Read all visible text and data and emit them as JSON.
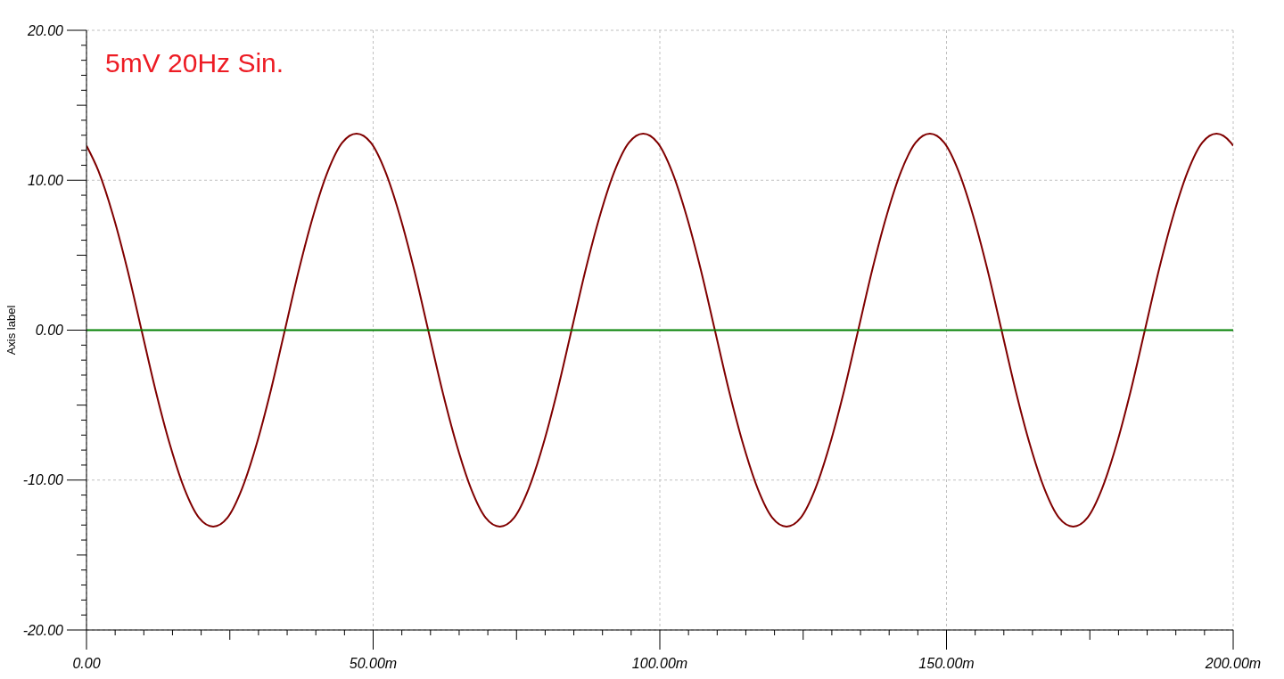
{
  "chart_data": {
    "type": "line",
    "ylabel": "Axis label",
    "annotations": [
      "5mV 20Hz Sin."
    ],
    "xlim": [
      0,
      200
    ],
    "xticks": [
      {
        "value": 0,
        "label": "0.00"
      },
      {
        "value": 5,
        "label": null
      },
      {
        "value": 10,
        "label": null
      },
      {
        "value": 15,
        "label": null
      },
      {
        "value": 20,
        "label": null
      },
      {
        "value": 25,
        "label": null
      },
      {
        "value": 30,
        "label": null
      },
      {
        "value": 35,
        "label": null
      },
      {
        "value": 40,
        "label": null
      },
      {
        "value": 45,
        "label": null
      },
      {
        "value": 50,
        "label": "50.00m"
      },
      {
        "value": 55,
        "label": null
      },
      {
        "value": 60,
        "label": null
      },
      {
        "value": 65,
        "label": null
      },
      {
        "value": 70,
        "label": null
      },
      {
        "value": 75,
        "label": null
      },
      {
        "value": 80,
        "label": null
      },
      {
        "value": 85,
        "label": null
      },
      {
        "value": 90,
        "label": null
      },
      {
        "value": 95,
        "label": null
      },
      {
        "value": 100,
        "label": "100.00m"
      },
      {
        "value": 105,
        "label": null
      },
      {
        "value": 110,
        "label": null
      },
      {
        "value": 115,
        "label": null
      },
      {
        "value": 120,
        "label": null
      },
      {
        "value": 125,
        "label": null
      },
      {
        "value": 130,
        "label": null
      },
      {
        "value": 135,
        "label": null
      },
      {
        "value": 140,
        "label": null
      },
      {
        "value": 145,
        "label": null
      },
      {
        "value": 150,
        "label": "150.00m"
      },
      {
        "value": 155,
        "label": null
      },
      {
        "value": 160,
        "label": null
      },
      {
        "value": 165,
        "label": null
      },
      {
        "value": 170,
        "label": null
      },
      {
        "value": 175,
        "label": null
      },
      {
        "value": 180,
        "label": null
      },
      {
        "value": 185,
        "label": null
      },
      {
        "value": 190,
        "label": null
      },
      {
        "value": 195,
        "label": null
      },
      {
        "value": 200,
        "label": "200.00m"
      }
    ],
    "ylim": [
      -20,
      20
    ],
    "yticks": [
      {
        "value": -20,
        "label": "-20.00"
      },
      {
        "value": -19,
        "label": null
      },
      {
        "value": -18,
        "label": null
      },
      {
        "value": -17,
        "label": null
      },
      {
        "value": -16,
        "label": null
      },
      {
        "value": -15,
        "label": null
      },
      {
        "value": -14,
        "label": null
      },
      {
        "value": -13,
        "label": null
      },
      {
        "value": -12,
        "label": null
      },
      {
        "value": -11,
        "label": null
      },
      {
        "value": -10,
        "label": "-10.00"
      },
      {
        "value": -9,
        "label": null
      },
      {
        "value": -8,
        "label": null
      },
      {
        "value": -7,
        "label": null
      },
      {
        "value": -6,
        "label": null
      },
      {
        "value": -5,
        "label": null
      },
      {
        "value": -4,
        "label": null
      },
      {
        "value": -3,
        "label": null
      },
      {
        "value": -2,
        "label": null
      },
      {
        "value": -1,
        "label": null
      },
      {
        "value": 0,
        "label": "0.00"
      },
      {
        "value": 1,
        "label": null
      },
      {
        "value": 2,
        "label": null
      },
      {
        "value": 3,
        "label": null
      },
      {
        "value": 4,
        "label": null
      },
      {
        "value": 5,
        "label": null
      },
      {
        "value": 6,
        "label": null
      },
      {
        "value": 7,
        "label": null
      },
      {
        "value": 8,
        "label": null
      },
      {
        "value": 9,
        "label": null
      },
      {
        "value": 10,
        "label": "10.00"
      },
      {
        "value": 11,
        "label": null
      },
      {
        "value": 12,
        "label": null
      },
      {
        "value": 13,
        "label": null
      },
      {
        "value": 14,
        "label": null
      },
      {
        "value": 15,
        "label": null
      },
      {
        "value": 16,
        "label": null
      },
      {
        "value": 17,
        "label": null
      },
      {
        "value": 18,
        "label": null
      },
      {
        "value": 19,
        "label": null
      },
      {
        "value": 20,
        "label": "20.00"
      }
    ],
    "grid": true,
    "series": [
      {
        "color": "#800000",
        "x": [
          0,
          2.1,
          4.6,
          7.1,
          9.6,
          12.1,
          14.6,
          17.1,
          19.6,
          22.1,
          24.6,
          27.1,
          29.6,
          32.1,
          34.6,
          37.1,
          39.6,
          42.1,
          44.6,
          47.1,
          49.6,
          52.1,
          54.6,
          57.1,
          59.6,
          62.1,
          64.6,
          67.1,
          69.6,
          72.1,
          74.6,
          77.1,
          79.6,
          82.1,
          84.6,
          87.1,
          89.6,
          92.1,
          94.6,
          97.1,
          99.6,
          102.1,
          104.6,
          107.1,
          109.6,
          112.1,
          114.6,
          117.1,
          119.6,
          122.1,
          124.6,
          127.1,
          129.6,
          132.1,
          134.6,
          137.1,
          139.6,
          142.1,
          144.6,
          147.1,
          149.6,
          152.1,
          154.6,
          157.1,
          159.6,
          162.1,
          164.6,
          167.1,
          169.6,
          172.1,
          174.6,
          177.1,
          179.6,
          182.1,
          184.6,
          187.1,
          189.6,
          192.1,
          194.6,
          197.1,
          199.6,
          200
        ],
        "values": [
          12.3,
          10.6,
          7.7,
          4.1,
          0.0,
          -4.1,
          -7.7,
          -10.6,
          -12.5,
          -13.1,
          -12.5,
          -10.6,
          -7.7,
          -4.1,
          0.0,
          4.1,
          7.7,
          10.6,
          12.5,
          13.1,
          12.5,
          10.6,
          7.7,
          4.1,
          0.0,
          -4.1,
          -7.7,
          -10.6,
          -12.5,
          -13.1,
          -12.5,
          -10.6,
          -7.7,
          -4.1,
          0.0,
          4.1,
          7.7,
          10.6,
          12.5,
          13.1,
          12.5,
          10.6,
          7.7,
          4.1,
          0.0,
          -4.1,
          -7.7,
          -10.6,
          -12.5,
          -13.1,
          -12.5,
          -10.6,
          -7.7,
          -4.1,
          0.0,
          4.1,
          7.7,
          10.6,
          12.5,
          13.1,
          12.5,
          10.6,
          7.7,
          4.1,
          0.0,
          -4.1,
          -7.7,
          -10.6,
          -12.5,
          -13.1,
          -12.5,
          -10.6,
          -7.7,
          -4.1,
          0.0,
          4.1,
          7.7,
          10.6,
          12.5,
          13.1,
          12.5,
          12.3
        ]
      },
      {
        "color": "#008000",
        "x": [
          0,
          200
        ],
        "values": [
          0,
          0
        ]
      }
    ]
  }
}
